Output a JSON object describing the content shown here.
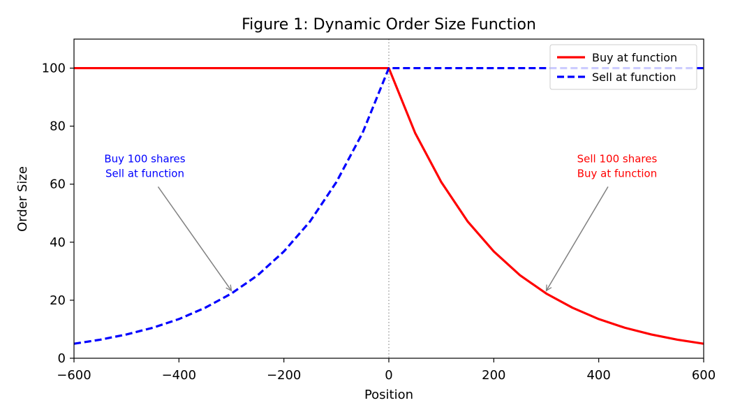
{
  "chart_data": {
    "type": "line",
    "title": "Figure 1: Dynamic Order Size Function",
    "xlabel": "Position",
    "ylabel": "Order Size",
    "xlim": [
      -600,
      600
    ],
    "ylim": [
      0,
      110
    ],
    "x_ticks": [
      -600,
      -400,
      -200,
      0,
      200,
      400,
      600
    ],
    "x_tick_labels": [
      "−600",
      "−400",
      "−200",
      "0",
      "200",
      "400",
      "600"
    ],
    "y_ticks": [
      0,
      20,
      40,
      60,
      80,
      100
    ],
    "y_tick_labels": [
      "0",
      "20",
      "40",
      "60",
      "80",
      "100"
    ],
    "grid": false,
    "legend_position": "top-right",
    "series": [
      {
        "name": "Buy at function",
        "color": "#ff0000",
        "style": "solid",
        "x": [
          -600,
          -500,
          -400,
          -300,
          -200,
          -100,
          0,
          50,
          100,
          150,
          200,
          250,
          300,
          350,
          400,
          450,
          500,
          550,
          600
        ],
        "y": [
          100,
          100,
          100,
          100,
          100,
          100,
          100,
          77.7,
          60.7,
          47.2,
          36.8,
          28.6,
          22.3,
          17.4,
          13.5,
          10.5,
          8.2,
          6.4,
          5.0
        ]
      },
      {
        "name": "Sell at function",
        "color": "#0000ff",
        "style": "dashed",
        "x": [
          -600,
          -550,
          -500,
          -450,
          -400,
          -350,
          -300,
          -250,
          -200,
          -150,
          -100,
          -50,
          0,
          100,
          200,
          300,
          400,
          500,
          600
        ],
        "y": [
          5.0,
          6.4,
          8.2,
          10.5,
          13.5,
          17.4,
          22.3,
          28.6,
          36.8,
          47.2,
          60.7,
          77.7,
          100,
          100,
          100,
          100,
          100,
          100,
          100
        ]
      }
    ],
    "reference_lines": [
      {
        "axis": "x",
        "value": 0,
        "color": "#808080",
        "style": "dotted"
      }
    ],
    "annotations": [
      {
        "lines": [
          "Buy 100 shares",
          "Sell at function"
        ],
        "color": "#0000ff",
        "text_at": [
          -465,
          62
        ],
        "arrow_to": [
          -300,
          22.3
        ]
      },
      {
        "lines": [
          "Sell 100 shares",
          "Buy at function"
        ],
        "color": "#ff0000",
        "text_at": [
          435,
          62
        ],
        "arrow_to": [
          300,
          22.3
        ]
      }
    ]
  }
}
